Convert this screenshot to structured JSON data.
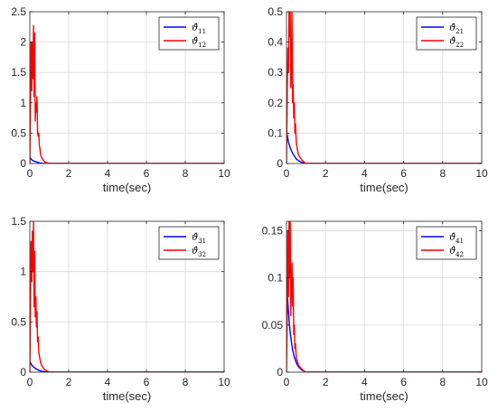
{
  "chart_data": [
    {
      "type": "line",
      "xlabel": "time(sec)",
      "ylabel": "",
      "xlim": [
        0,
        10
      ],
      "ylim": [
        0,
        2.5
      ],
      "xticks": [
        0,
        2,
        4,
        6,
        8,
        10
      ],
      "yticks": [
        0,
        0.5,
        1,
        1.5,
        2,
        2.5
      ],
      "grid": true,
      "legend_position": "top-right",
      "series": [
        {
          "name": "ϑ̂11",
          "color": "#0000ff",
          "x": [
            0,
            0.05,
            0.1,
            0.2,
            0.3,
            0.4,
            0.5,
            0.6,
            0.8,
            1.0,
            10
          ],
          "y": [
            0.1,
            0.08,
            0.06,
            0.04,
            0.03,
            0.02,
            0.01,
            0.005,
            0.002,
            0,
            0
          ]
        },
        {
          "name": "ϑ̂12",
          "color": "#ff0000",
          "x": [
            0,
            0.03,
            0.06,
            0.1,
            0.13,
            0.16,
            0.19,
            0.22,
            0.25,
            0.28,
            0.31,
            0.34,
            0.37,
            0.4,
            0.43,
            0.46,
            0.49,
            0.52,
            0.55,
            0.6,
            0.65,
            0.7,
            0.8,
            0.9,
            1.0,
            10
          ],
          "y": [
            0,
            0.9,
            2.0,
            1.2,
            2.0,
            1.4,
            2.27,
            1.1,
            2.15,
            0.7,
            1.0,
            0.85,
            1.1,
            0.5,
            0.45,
            0.5,
            0.3,
            0.25,
            0.15,
            0.1,
            0.08,
            0.05,
            0.02,
            0.01,
            0,
            0
          ]
        }
      ]
    },
    {
      "type": "line",
      "xlabel": "time(sec)",
      "ylabel": "",
      "xlim": [
        0,
        10
      ],
      "ylim": [
        0,
        0.5
      ],
      "xticks": [
        0,
        2,
        4,
        6,
        8,
        10
      ],
      "yticks": [
        0,
        0.1,
        0.2,
        0.3,
        0.4,
        0.5
      ],
      "grid": true,
      "legend_position": "top-right",
      "series": [
        {
          "name": "ϑ̂21",
          "color": "#0000ff",
          "x": [
            0,
            0.05,
            0.1,
            0.15,
            0.2,
            0.3,
            0.4,
            0.5,
            0.6,
            0.7,
            0.8,
            1.0,
            10
          ],
          "y": [
            0.1,
            0.09,
            0.07,
            0.06,
            0.05,
            0.035,
            0.025,
            0.015,
            0.01,
            0.006,
            0.003,
            0,
            0
          ]
        },
        {
          "name": "ϑ̂22",
          "color": "#ff0000",
          "x": [
            0,
            0.04,
            0.07,
            0.1,
            0.13,
            0.16,
            0.19,
            0.22,
            0.25,
            0.28,
            0.31,
            0.34,
            0.37,
            0.4,
            0.43,
            0.46,
            0.5,
            0.55,
            0.6,
            0.7,
            0.8,
            0.9,
            1.0,
            10
          ],
          "y": [
            0,
            0.25,
            0.38,
            0.3,
            0.5,
            0.42,
            0.5,
            0.25,
            0.3,
            0.5,
            0.2,
            0.26,
            0.15,
            0.2,
            0.1,
            0.13,
            0.07,
            0.05,
            0.03,
            0.02,
            0.01,
            0.005,
            0,
            0
          ]
        }
      ]
    },
    {
      "type": "line",
      "xlabel": "time(sec)",
      "ylabel": "",
      "xlim": [
        0,
        10
      ],
      "ylim": [
        0,
        1.5
      ],
      "xticks": [
        0,
        2,
        4,
        6,
        8,
        10
      ],
      "yticks": [
        0,
        0.5,
        1,
        1.5
      ],
      "grid": true,
      "legend_position": "top-right",
      "series": [
        {
          "name": "ϑ̂31",
          "color": "#0000ff",
          "x": [
            0,
            0.05,
            0.1,
            0.2,
            0.3,
            0.4,
            0.5,
            0.6,
            0.8,
            1.0,
            10
          ],
          "y": [
            0.1,
            0.09,
            0.07,
            0.05,
            0.035,
            0.025,
            0.015,
            0.01,
            0.004,
            0,
            0
          ]
        },
        {
          "name": "ϑ̂32",
          "color": "#ff0000",
          "x": [
            0,
            0.03,
            0.06,
            0.1,
            0.13,
            0.16,
            0.19,
            0.22,
            0.25,
            0.28,
            0.31,
            0.34,
            0.37,
            0.4,
            0.43,
            0.46,
            0.5,
            0.55,
            0.6,
            0.7,
            0.8,
            0.9,
            1.0,
            10
          ],
          "y": [
            0,
            0.6,
            1.3,
            0.9,
            1.4,
            1.0,
            1.5,
            0.65,
            1.2,
            0.55,
            0.75,
            0.45,
            0.6,
            0.3,
            0.35,
            0.2,
            0.15,
            0.1,
            0.07,
            0.04,
            0.02,
            0.01,
            0,
            0
          ]
        }
      ]
    },
    {
      "type": "line",
      "xlabel": "time(sec)",
      "ylabel": "",
      "xlim": [
        0,
        10
      ],
      "ylim": [
        0,
        0.16
      ],
      "xticks": [
        0,
        2,
        4,
        6,
        8,
        10
      ],
      "yticks": [
        0,
        0.05,
        0.1,
        0.15
      ],
      "ytick_labels": [
        "0",
        "0.05",
        "0.1",
        "0.15"
      ],
      "grid": true,
      "legend_position": "top-right",
      "series": [
        {
          "name": "ϑ̂41",
          "color": "#0000ff",
          "x": [
            0,
            0.05,
            0.1,
            0.15,
            0.2,
            0.3,
            0.4,
            0.5,
            0.6,
            0.7,
            0.8,
            1.0,
            10
          ],
          "y": [
            0.1,
            0.08,
            0.065,
            0.05,
            0.04,
            0.025,
            0.016,
            0.01,
            0.006,
            0.004,
            0.002,
            0,
            0
          ]
        },
        {
          "name": "ϑ̂42",
          "color": "#ff0000",
          "x": [
            0,
            0.03,
            0.06,
            0.1,
            0.13,
            0.16,
            0.19,
            0.22,
            0.25,
            0.28,
            0.31,
            0.34,
            0.37,
            0.4,
            0.43,
            0.46,
            0.5,
            0.55,
            0.6,
            0.7,
            0.8,
            0.9,
            1.0,
            10
          ],
          "y": [
            0,
            0.05,
            0.15,
            0.08,
            0.16,
            0.1,
            0.16,
            0.06,
            0.09,
            0.116,
            0.07,
            0.1,
            0.04,
            0.05,
            0.025,
            0.03,
            0.015,
            0.012,
            0.008,
            0.005,
            0.003,
            0.001,
            0,
            0
          ]
        }
      ]
    }
  ]
}
